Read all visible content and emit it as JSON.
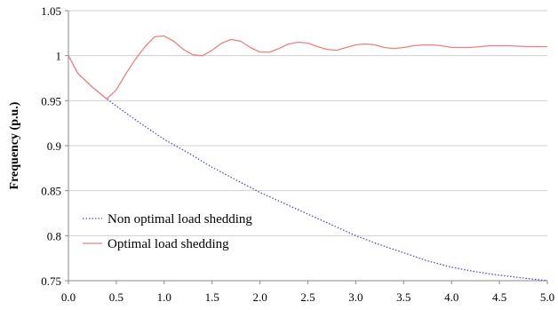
{
  "chart_data": {
    "type": "line",
    "title": "",
    "xlabel": "",
    "ylabel": "Frequency (p.u.)",
    "xlim": [
      0,
      5
    ],
    "ylim": [
      0.75,
      1.05
    ],
    "x_ticks": [
      "0.0",
      "0.5",
      "1.0",
      "1.5",
      "2.0",
      "2.5",
      "3.0",
      "3.5",
      "4.0",
      "4.5",
      "5.0"
    ],
    "y_ticks": [
      "0.75",
      "0.8",
      "0.85",
      "0.9",
      "0.95",
      "1",
      "1.05"
    ],
    "grid": "horizontal",
    "legend_position": "bottom-left",
    "series": [
      {
        "name": "Non optimal load shedding",
        "color": "#4a4adf",
        "style": "dotted",
        "points": [
          [
            0.0,
            1.0
          ],
          [
            0.1,
            0.98
          ],
          [
            0.25,
            0.965
          ],
          [
            0.4,
            0.952
          ],
          [
            0.5,
            0.944
          ],
          [
            0.75,
            0.925
          ],
          [
            1.0,
            0.907
          ],
          [
            1.25,
            0.892
          ],
          [
            1.5,
            0.876
          ],
          [
            1.75,
            0.862
          ],
          [
            2.0,
            0.848
          ],
          [
            2.25,
            0.836
          ],
          [
            2.5,
            0.824
          ],
          [
            2.75,
            0.812
          ],
          [
            3.0,
            0.8
          ],
          [
            3.25,
            0.79
          ],
          [
            3.5,
            0.781
          ],
          [
            3.75,
            0.772
          ],
          [
            4.0,
            0.765
          ],
          [
            4.25,
            0.76
          ],
          [
            4.5,
            0.756
          ],
          [
            4.75,
            0.753
          ],
          [
            5.0,
            0.75
          ]
        ]
      },
      {
        "name": "Optimal load shedding",
        "color": "#ee8080",
        "style": "solid",
        "points": [
          [
            0.0,
            1.0
          ],
          [
            0.1,
            0.98
          ],
          [
            0.25,
            0.965
          ],
          [
            0.4,
            0.952
          ],
          [
            0.5,
            0.962
          ],
          [
            0.6,
            0.98
          ],
          [
            0.7,
            0.996
          ],
          [
            0.8,
            1.01
          ],
          [
            0.9,
            1.021
          ],
          [
            1.0,
            1.022
          ],
          [
            1.1,
            1.016
          ],
          [
            1.2,
            1.007
          ],
          [
            1.3,
            1.001
          ],
          [
            1.4,
            1.0
          ],
          [
            1.5,
            1.006
          ],
          [
            1.6,
            1.014
          ],
          [
            1.7,
            1.018
          ],
          [
            1.8,
            1.016
          ],
          [
            1.9,
            1.009
          ],
          [
            2.0,
            1.004
          ],
          [
            2.1,
            1.004
          ],
          [
            2.2,
            1.008
          ],
          [
            2.3,
            1.013
          ],
          [
            2.4,
            1.015
          ],
          [
            2.5,
            1.014
          ],
          [
            2.6,
            1.01
          ],
          [
            2.7,
            1.007
          ],
          [
            2.8,
            1.006
          ],
          [
            2.9,
            1.009
          ],
          [
            3.0,
            1.012
          ],
          [
            3.1,
            1.013
          ],
          [
            3.2,
            1.012
          ],
          [
            3.3,
            1.009
          ],
          [
            3.4,
            1.008
          ],
          [
            3.5,
            1.009
          ],
          [
            3.6,
            1.011
          ],
          [
            3.7,
            1.012
          ],
          [
            3.8,
            1.012
          ],
          [
            3.9,
            1.011
          ],
          [
            4.0,
            1.009
          ],
          [
            4.2,
            1.009
          ],
          [
            4.4,
            1.011
          ],
          [
            4.6,
            1.011
          ],
          [
            4.8,
            1.01
          ],
          [
            5.0,
            1.01
          ]
        ]
      }
    ]
  }
}
